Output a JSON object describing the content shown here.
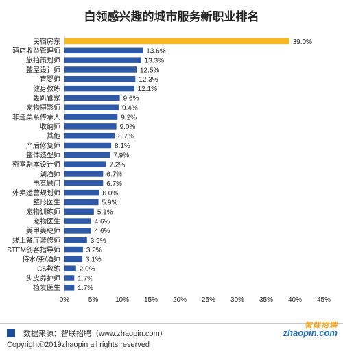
{
  "chart_data": {
    "type": "bar",
    "orientation": "horizontal",
    "title": "白领感兴趣的城市服务新职业排名",
    "categories": [
      "民宿房东",
      "酒店收益管理师",
      "旅拍策划师",
      "整屋设计师",
      "育婴师",
      "健身教练",
      "轰趴管家",
      "宠物摄影师",
      "非遗菜系传承人",
      "收纳师",
      "其他",
      "产后修复师",
      "整体造型师",
      "密室剧本设计师",
      "调酒师",
      "电竞顾问",
      "外卖运营规划师",
      "整形医生",
      "宠物训练师",
      "宠物医生",
      "美甲美睫师",
      "线上餐厅装修师",
      "STEM创客指导师",
      "侍水/茶/酒师",
      "CS教练",
      "头皮养护师",
      "植发医生"
    ],
    "values": [
      39.0,
      13.6,
      13.3,
      12.5,
      12.3,
      12.1,
      9.6,
      9.4,
      9.2,
      9.0,
      8.7,
      8.1,
      7.9,
      7.2,
      6.7,
      6.7,
      6.0,
      5.9,
      5.1,
      4.6,
      4.6,
      3.9,
      3.2,
      3.1,
      2.0,
      1.7,
      1.7
    ],
    "value_labels": [
      "39.0%",
      "13.6%",
      "13.3%",
      "12.5%",
      "12.3%",
      "12.1%",
      "9.6%",
      "9.4%",
      "9.2%",
      "9.0%",
      "8.7%",
      "8.1%",
      "7.9%",
      "7.2%",
      "6.7%",
      "6.7%",
      "6.0%",
      "5.9%",
      "5.1%",
      "4.6%",
      "4.6%",
      "3.9%",
      "3.2%",
      "3.1%",
      "2.0%",
      "1.7%",
      "1.7%"
    ],
    "xlim": [
      0,
      45
    ],
    "xticks": [
      "0%",
      "5%",
      "10%",
      "15%",
      "20%",
      "25%",
      "30%",
      "35%",
      "40%",
      "45%"
    ],
    "highlight_color": "#f5b921",
    "bar_color": "#2e5aa8",
    "grid": false
  },
  "footer": {
    "source": "数据来源：智联招聘（www.zhaopin.com）",
    "copyright": "Copyright©2019zhaopin all rights reserved",
    "logo_cn": "智联招聘",
    "logo_en": "zhaopin.com"
  }
}
